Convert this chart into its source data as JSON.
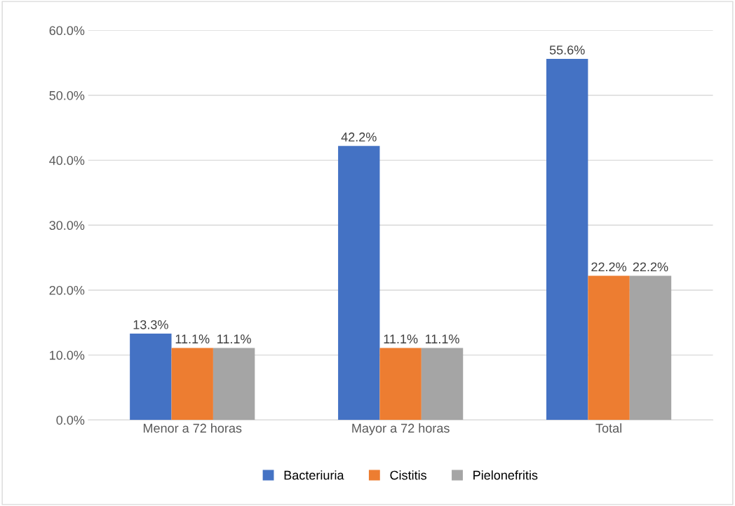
{
  "chart_data": {
    "type": "bar",
    "categories": [
      "Menor a 72 horas",
      "Mayor a 72 horas",
      "Total"
    ],
    "series": [
      {
        "name": "Bacteriuria",
        "color": "#4472c4",
        "values": [
          13.3,
          42.2,
          55.6
        ],
        "value_labels": [
          "13.3%",
          "42.2%",
          "55.6%"
        ]
      },
      {
        "name": "Cistitis",
        "color": "#ed7d31",
        "values": [
          11.1,
          11.1,
          22.2
        ],
        "value_labels": [
          "11.1%",
          "11.1%",
          "22.2%"
        ]
      },
      {
        "name": "Pielonefritis",
        "color": "#a5a5a5",
        "values": [
          11.1,
          11.1,
          22.2
        ],
        "value_labels": [
          "11.1%",
          "11.1%",
          "22.2%"
        ]
      }
    ],
    "ylim": [
      0,
      60
    ],
    "yticks": [
      {
        "value": 0,
        "label": "0.0%"
      },
      {
        "value": 10,
        "label": "10.0%"
      },
      {
        "value": 20,
        "label": "20.0%"
      },
      {
        "value": 30,
        "label": "30.0%"
      },
      {
        "value": 40,
        "label": "40.0%"
      },
      {
        "value": 50,
        "label": "50.0%"
      },
      {
        "value": 60,
        "label": "60.0%"
      }
    ],
    "grid": "y",
    "legend": "bottom"
  }
}
